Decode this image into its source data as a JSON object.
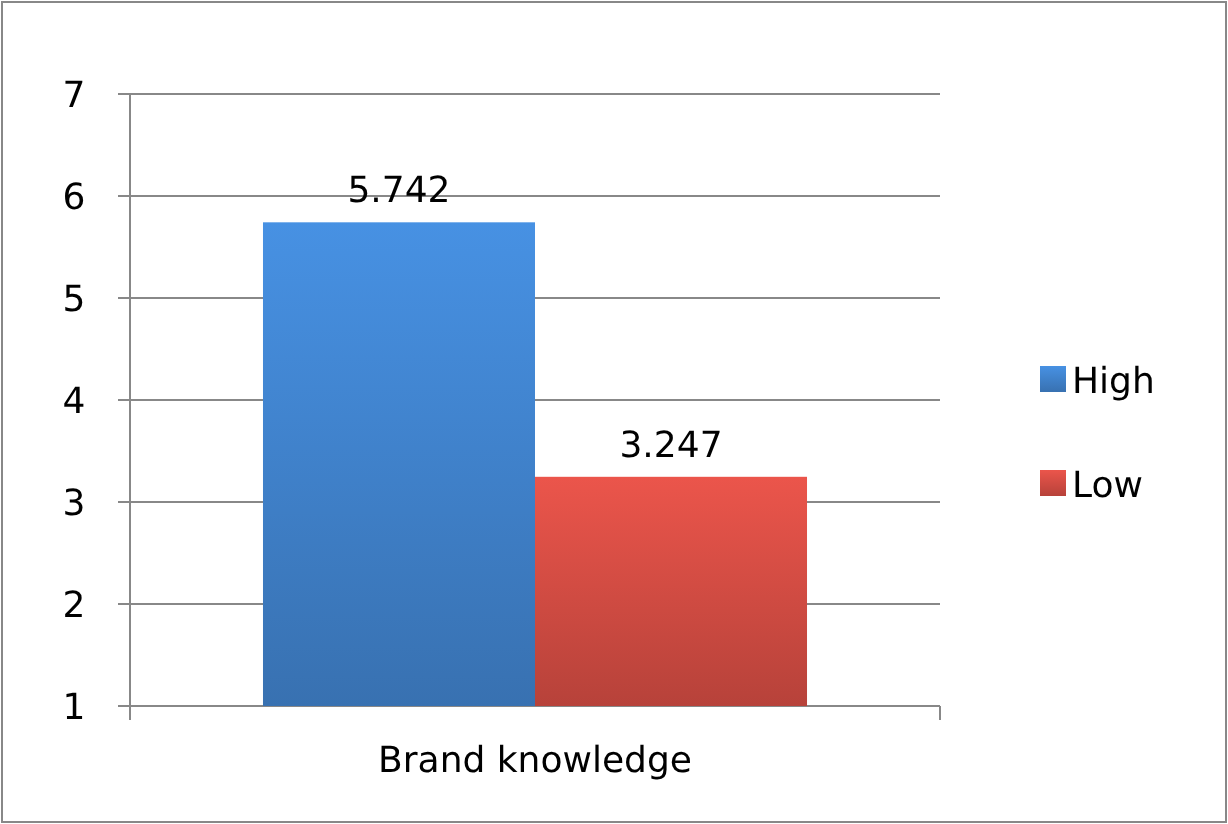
{
  "chart_data": {
    "type": "bar",
    "categories": [
      "Brand knowledge"
    ],
    "series": [
      {
        "name": "High",
        "color": "#3f80c8",
        "values": [
          5.742
        ]
      },
      {
        "name": "Low",
        "color": "#cf4b42",
        "values": [
          3.247
        ]
      }
    ],
    "ylim": [
      1,
      7
    ],
    "yticks": [
      1,
      2,
      3,
      4,
      5,
      6,
      7
    ],
    "grid": "y",
    "legend": "right",
    "data_labels": true
  }
}
